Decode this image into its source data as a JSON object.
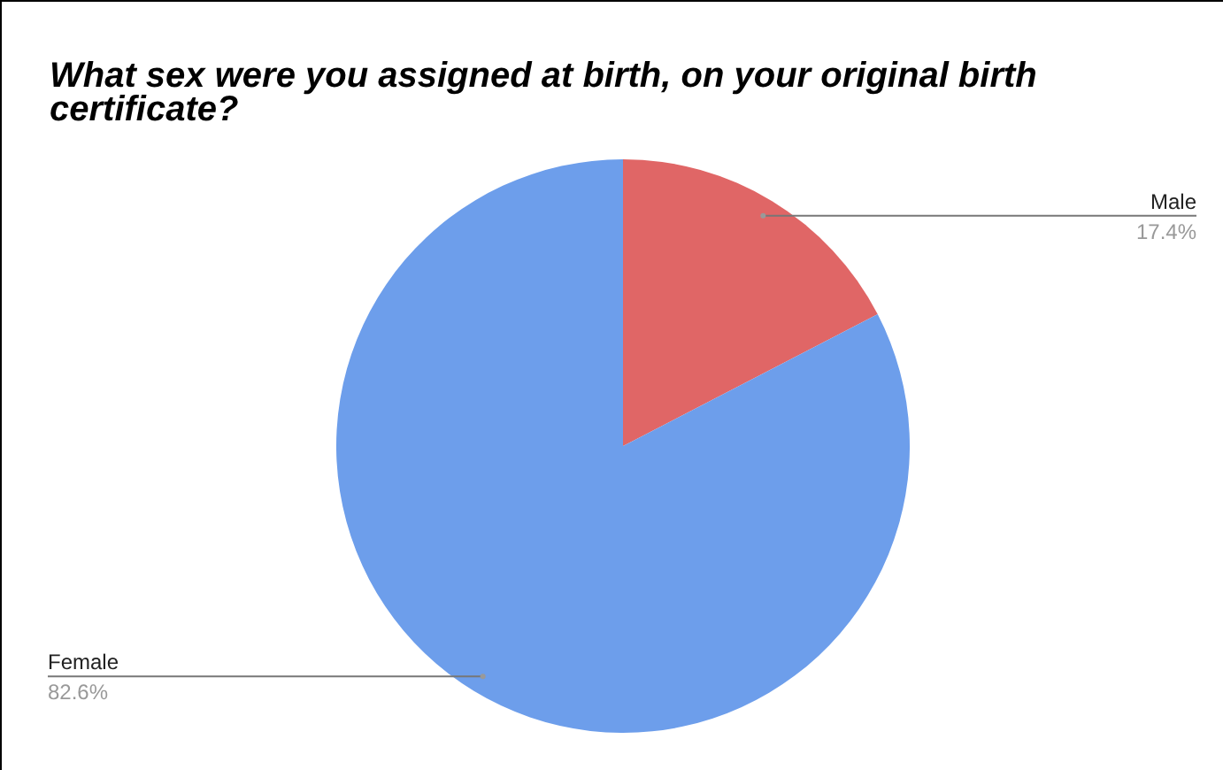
{
  "chart_data": {
    "type": "pie",
    "title": "What sex were you assigned at birth, on your original birth certificate?",
    "categories": [
      "Male",
      "Female"
    ],
    "values": [
      17.4,
      82.6
    ],
    "value_labels": [
      "17.4%",
      "82.6%"
    ],
    "colors": [
      "#e06666",
      "#6d9eeb"
    ]
  }
}
